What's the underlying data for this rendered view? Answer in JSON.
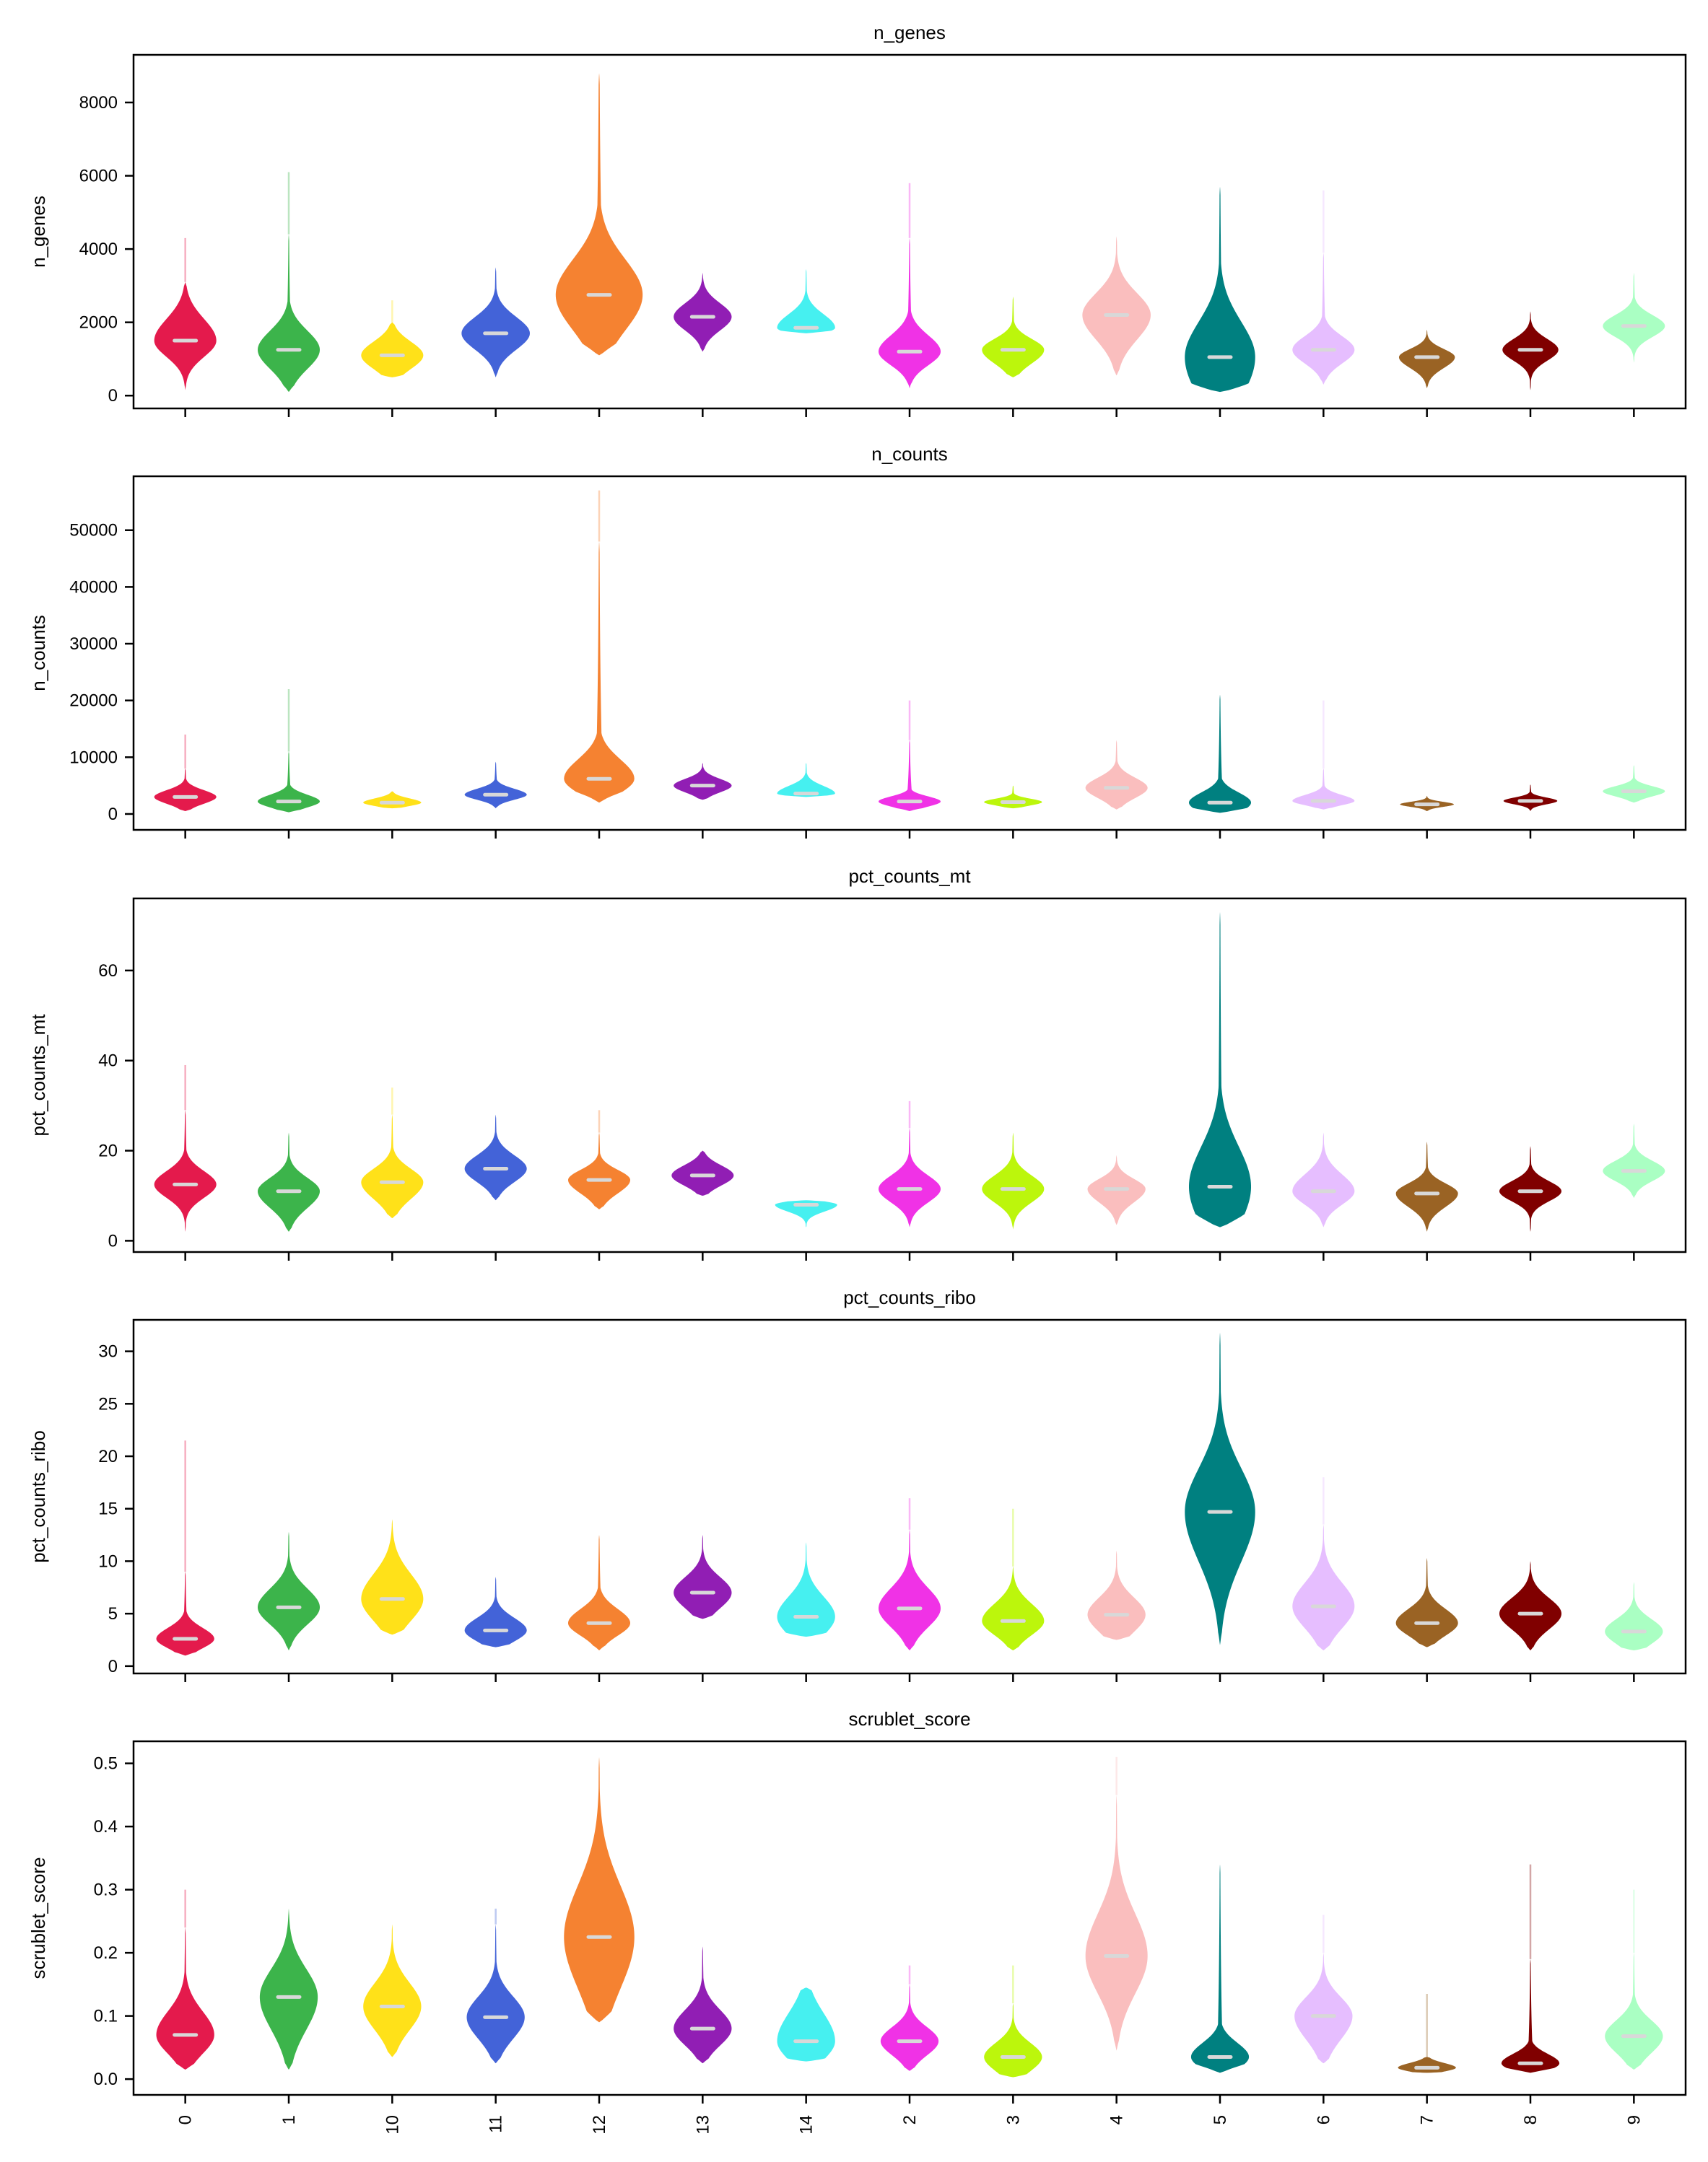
{
  "chart_data": [
    {
      "type": "violin",
      "title": "n_genes",
      "ylabel": "n_genes",
      "ylim": [
        -350,
        9300
      ],
      "yticks": [
        0,
        2000,
        4000,
        6000,
        8000
      ],
      "categories": [
        "0",
        "1",
        "10",
        "11",
        "12",
        "13",
        "14",
        "2",
        "3",
        "4",
        "5",
        "6",
        "7",
        "8",
        "9"
      ],
      "colors": [
        "#e41a4c",
        "#3cb44b",
        "#ffe119",
        "#4363d8",
        "#f58231",
        "#911eb4",
        "#46f0f0",
        "#f032e6",
        "#bcf60c",
        "#fabebe",
        "#008080",
        "#e6beff",
        "#9a6324",
        "#800000",
        "#aaffc3"
      ],
      "series": [
        {
          "min": 150,
          "q1": 1200,
          "median": 1500,
          "q3": 1900,
          "max": 3100,
          "halfwidth": 0.3,
          "outlier_max": 4300
        },
        {
          "min": 100,
          "q1": 900,
          "median": 1250,
          "q3": 1600,
          "max": 4400,
          "halfwidth": 0.3,
          "outlier_max": 6100
        },
        {
          "min": 500,
          "q1": 850,
          "median": 1100,
          "q3": 1350,
          "max": 2000,
          "halfwidth": 0.3,
          "outlier_max": 2600
        },
        {
          "min": 500,
          "q1": 1400,
          "median": 1700,
          "q3": 2000,
          "max": 3500,
          "halfwidth": 0.33
        },
        {
          "min": 1100,
          "q1": 2100,
          "median": 2750,
          "q3": 3400,
          "max": 8800,
          "halfwidth": 0.42
        },
        {
          "min": 1200,
          "q1": 1900,
          "median": 2150,
          "q3": 2400,
          "max": 3350,
          "halfwidth": 0.28
        },
        {
          "min": 1700,
          "q1": 1750,
          "median": 1850,
          "q3": 2100,
          "max": 3450,
          "halfwidth": 0.28
        },
        {
          "min": 200,
          "q1": 950,
          "median": 1200,
          "q3": 1500,
          "max": 4300,
          "halfwidth": 0.3,
          "outlier_max": 5800
        },
        {
          "min": 500,
          "q1": 1000,
          "median": 1250,
          "q3": 1450,
          "max": 2700,
          "halfwidth": 0.3
        },
        {
          "min": 550,
          "q1": 1750,
          "median": 2200,
          "q3": 2600,
          "max": 4350,
          "halfwidth": 0.33
        },
        {
          "min": 100,
          "q1": 300,
          "median": 1050,
          "q3": 1700,
          "max": 5700,
          "halfwidth": 0.34
        },
        {
          "min": 300,
          "q1": 1000,
          "median": 1250,
          "q3": 1500,
          "max": 3900,
          "halfwidth": 0.3,
          "outlier_max": 5600
        },
        {
          "min": 200,
          "q1": 850,
          "median": 1050,
          "q3": 1200,
          "max": 1800,
          "halfwidth": 0.27
        },
        {
          "min": 150,
          "q1": 1050,
          "median": 1250,
          "q3": 1450,
          "max": 2300,
          "halfwidth": 0.27
        },
        {
          "min": 900,
          "q1": 1700,
          "median": 1900,
          "q3": 2100,
          "max": 3350,
          "halfwidth": 0.3
        }
      ]
    },
    {
      "type": "violin",
      "title": "n_counts",
      "ylabel": "n_counts",
      "ylim": [
        -2800,
        59500
      ],
      "yticks": [
        0,
        10000,
        20000,
        30000,
        40000,
        50000
      ],
      "categories": [
        "0",
        "1",
        "10",
        "11",
        "12",
        "13",
        "14",
        "2",
        "3",
        "4",
        "5",
        "6",
        "7",
        "8",
        "9"
      ],
      "colors": [
        "#e41a4c",
        "#3cb44b",
        "#ffe119",
        "#4363d8",
        "#f58231",
        "#911eb4",
        "#46f0f0",
        "#f032e6",
        "#bcf60c",
        "#fabebe",
        "#008080",
        "#e6beff",
        "#9a6324",
        "#800000",
        "#aaffc3"
      ],
      "series": [
        {
          "min": 500,
          "q1": 2200,
          "median": 3000,
          "q3": 3800,
          "max": 8000,
          "halfwidth": 0.3,
          "outlier_max": 14000
        },
        {
          "min": 300,
          "q1": 1500,
          "median": 2200,
          "q3": 3000,
          "max": 11000,
          "halfwidth": 0.3,
          "outlier_max": 22000
        },
        {
          "min": 1000,
          "q1": 1600,
          "median": 2000,
          "q3": 2500,
          "max": 4000,
          "halfwidth": 0.28
        },
        {
          "min": 1000,
          "q1": 2800,
          "median": 3400,
          "q3": 4100,
          "max": 9200,
          "halfwidth": 0.3
        },
        {
          "min": 2000,
          "q1": 4500,
          "median": 6200,
          "q3": 8500,
          "max": 48000,
          "halfwidth": 0.34,
          "outlier_max": 57000
        },
        {
          "min": 2500,
          "q1": 4200,
          "median": 5000,
          "q3": 5800,
          "max": 9000,
          "halfwidth": 0.28
        },
        {
          "min": 3000,
          "q1": 3300,
          "median": 3600,
          "q3": 4500,
          "max": 9000,
          "halfwidth": 0.28
        },
        {
          "min": 500,
          "q1": 1600,
          "median": 2200,
          "q3": 2800,
          "max": 13000,
          "halfwidth": 0.3,
          "outlier_max": 20000
        },
        {
          "min": 1000,
          "q1": 1700,
          "median": 2100,
          "q3": 2500,
          "max": 5000,
          "halfwidth": 0.28
        },
        {
          "min": 800,
          "q1": 3400,
          "median": 4600,
          "q3": 5800,
          "max": 13000,
          "halfwidth": 0.3
        },
        {
          "min": 200,
          "q1": 800,
          "median": 2000,
          "q3": 3200,
          "max": 21000,
          "halfwidth": 0.3
        },
        {
          "min": 800,
          "q1": 1800,
          "median": 2300,
          "q3": 3000,
          "max": 8000,
          "halfwidth": 0.3,
          "outlier_max": 20000
        },
        {
          "min": 500,
          "q1": 1400,
          "median": 1700,
          "q3": 2000,
          "max": 3200,
          "halfwidth": 0.26
        },
        {
          "min": 500,
          "q1": 1900,
          "median": 2300,
          "q3": 2700,
          "max": 5200,
          "halfwidth": 0.26
        },
        {
          "min": 2000,
          "q1": 3400,
          "median": 4000,
          "q3": 4600,
          "max": 8600,
          "halfwidth": 0.3
        }
      ]
    },
    {
      "type": "violin",
      "title": "pct_counts_mt",
      "ylabel": "pct_counts_mt",
      "ylim": [
        -2.5,
        76
      ],
      "yticks": [
        0,
        20,
        40,
        60
      ],
      "categories": [
        "0",
        "1",
        "10",
        "11",
        "12",
        "13",
        "14",
        "2",
        "3",
        "4",
        "5",
        "6",
        "7",
        "8",
        "9"
      ],
      "colors": [
        "#e41a4c",
        "#3cb44b",
        "#ffe119",
        "#4363d8",
        "#f58231",
        "#911eb4",
        "#46f0f0",
        "#f032e6",
        "#bcf60c",
        "#fabebe",
        "#008080",
        "#e6beff",
        "#9a6324",
        "#800000",
        "#aaffc3"
      ],
      "series": [
        {
          "min": 2,
          "q1": 10.5,
          "median": 12.5,
          "q3": 14.5,
          "max": 29,
          "halfwidth": 0.3,
          "outlier_max": 39
        },
        {
          "min": 2,
          "q1": 8.5,
          "median": 11,
          "q3": 13,
          "max": 24,
          "halfwidth": 0.3
        },
        {
          "min": 5,
          "q1": 10.5,
          "median": 13,
          "q3": 15,
          "max": 28,
          "halfwidth": 0.3,
          "outlier_max": 34
        },
        {
          "min": 9,
          "q1": 14,
          "median": 16,
          "q3": 18,
          "max": 28,
          "halfwidth": 0.3
        },
        {
          "min": 7,
          "q1": 11.5,
          "median": 13.5,
          "q3": 15,
          "max": 24,
          "halfwidth": 0.3,
          "outlier_max": 29
        },
        {
          "min": 10,
          "q1": 13,
          "median": 14.5,
          "q3": 16,
          "max": 20,
          "halfwidth": 0.3
        },
        {
          "min": 3,
          "q1": 7,
          "median": 8,
          "q3": 8.5,
          "max": 9,
          "halfwidth": 0.3
        },
        {
          "min": 3,
          "q1": 9.5,
          "median": 11.5,
          "q3": 13.5,
          "max": 25,
          "halfwidth": 0.3,
          "outlier_max": 31
        },
        {
          "min": 2.5,
          "q1": 9.5,
          "median": 11.5,
          "q3": 13.5,
          "max": 24,
          "halfwidth": 0.3
        },
        {
          "min": 3.5,
          "q1": 9.5,
          "median": 11.5,
          "q3": 13,
          "max": 19,
          "halfwidth": 0.28
        },
        {
          "min": 3,
          "q1": 6,
          "median": 12,
          "q3": 18,
          "max": 73,
          "halfwidth": 0.3
        },
        {
          "min": 3,
          "q1": 9,
          "median": 11,
          "q3": 13.5,
          "max": 24,
          "halfwidth": 0.3
        },
        {
          "min": 2,
          "q1": 8.5,
          "median": 10.5,
          "q3": 12,
          "max": 22,
          "halfwidth": 0.3
        },
        {
          "min": 2,
          "q1": 9.5,
          "median": 11,
          "q3": 12.5,
          "max": 21,
          "halfwidth": 0.3
        },
        {
          "min": 9.5,
          "q1": 14,
          "median": 15.5,
          "q3": 17,
          "max": 26,
          "halfwidth": 0.3
        }
      ]
    },
    {
      "type": "violin",
      "title": "pct_counts_ribo",
      "ylabel": "pct_counts_ribo",
      "ylim": [
        -0.7,
        33
      ],
      "yticks": [
        0,
        5,
        10,
        15,
        20,
        25,
        30
      ],
      "categories": [
        "0",
        "1",
        "10",
        "11",
        "12",
        "13",
        "14",
        "2",
        "3",
        "4",
        "5",
        "6",
        "7",
        "8",
        "9"
      ],
      "colors": [
        "#e41a4c",
        "#3cb44b",
        "#ffe119",
        "#4363d8",
        "#f58231",
        "#911eb4",
        "#46f0f0",
        "#f032e6",
        "#bcf60c",
        "#fabebe",
        "#008080",
        "#e6beff",
        "#9a6324",
        "#800000",
        "#aaffc3"
      ],
      "series": [
        {
          "min": 1,
          "q1": 2,
          "median": 2.6,
          "q3": 3.3,
          "max": 9,
          "halfwidth": 0.28,
          "outlier_max": 21.5
        },
        {
          "min": 1.5,
          "q1": 4.5,
          "median": 5.6,
          "q3": 6.8,
          "max": 12.8,
          "halfwidth": 0.3
        },
        {
          "min": 3,
          "q1": 5,
          "median": 6.4,
          "q3": 8,
          "max": 14,
          "halfwidth": 0.3
        },
        {
          "min": 1.8,
          "q1": 2.7,
          "median": 3.4,
          "q3": 4.2,
          "max": 8.5,
          "halfwidth": 0.3
        },
        {
          "min": 1.5,
          "q1": 3.3,
          "median": 4.1,
          "q3": 5,
          "max": 12.5,
          "halfwidth": 0.3
        },
        {
          "min": 4.5,
          "q1": 6,
          "median": 7,
          "q3": 8,
          "max": 12.5,
          "halfwidth": 0.28
        },
        {
          "min": 2.8,
          "q1": 3.5,
          "median": 4.7,
          "q3": 6,
          "max": 11.8,
          "halfwidth": 0.28
        },
        {
          "min": 1.5,
          "q1": 4.3,
          "median": 5.5,
          "q3": 6.8,
          "max": 13,
          "halfwidth": 0.3,
          "outlier_max": 16
        },
        {
          "min": 1.5,
          "q1": 3.4,
          "median": 4.3,
          "q3": 5.4,
          "max": 9.5,
          "halfwidth": 0.3,
          "outlier_max": 15
        },
        {
          "min": 2.5,
          "q1": 3.8,
          "median": 4.9,
          "q3": 6,
          "max": 11,
          "halfwidth": 0.28
        },
        {
          "min": 2,
          "q1": 11.5,
          "median": 14.7,
          "q3": 17.5,
          "max": 31.8,
          "halfwidth": 0.34
        },
        {
          "min": 1.5,
          "q1": 4.3,
          "median": 5.7,
          "q3": 7.2,
          "max": 13.5,
          "halfwidth": 0.3,
          "outlier_max": 18
        },
        {
          "min": 1.8,
          "q1": 3.3,
          "median": 4.1,
          "q3": 5,
          "max": 10.3,
          "halfwidth": 0.3
        },
        {
          "min": 1.5,
          "q1": 4,
          "median": 5,
          "q3": 6,
          "max": 10,
          "halfwidth": 0.3
        },
        {
          "min": 1.5,
          "q1": 2.5,
          "median": 3.3,
          "q3": 4.1,
          "max": 8,
          "halfwidth": 0.28
        }
      ]
    },
    {
      "type": "violin",
      "title": "scrublet_score",
      "ylabel": "scrublet_score",
      "ylim": [
        -0.025,
        0.535
      ],
      "yticks": [
        0.0,
        0.1,
        0.2,
        0.3,
        0.4,
        0.5
      ],
      "categories": [
        "0",
        "1",
        "10",
        "11",
        "12",
        "13",
        "14",
        "2",
        "3",
        "4",
        "5",
        "6",
        "7",
        "8",
        "9"
      ],
      "colors": [
        "#e41a4c",
        "#3cb44b",
        "#ffe119",
        "#4363d8",
        "#f58231",
        "#911eb4",
        "#46f0f0",
        "#f032e6",
        "#bcf60c",
        "#fabebe",
        "#008080",
        "#e6beff",
        "#9a6324",
        "#800000",
        "#aaffc3"
      ],
      "series": [
        {
          "min": 0.015,
          "q1": 0.05,
          "median": 0.07,
          "q3": 0.095,
          "max": 0.24,
          "halfwidth": 0.28,
          "outlier_max": 0.3
        },
        {
          "min": 0.015,
          "q1": 0.095,
          "median": 0.13,
          "q3": 0.16,
          "max": 0.27,
          "halfwidth": 0.28
        },
        {
          "min": 0.035,
          "q1": 0.09,
          "median": 0.115,
          "q3": 0.14,
          "max": 0.245,
          "halfwidth": 0.28
        },
        {
          "min": 0.025,
          "q1": 0.075,
          "median": 0.098,
          "q3": 0.12,
          "max": 0.245,
          "halfwidth": 0.28,
          "outlier_max": 0.27
        },
        {
          "min": 0.09,
          "q1": 0.17,
          "median": 0.225,
          "q3": 0.28,
          "max": 0.51,
          "halfwidth": 0.34
        },
        {
          "min": 0.025,
          "q1": 0.062,
          "median": 0.08,
          "q3": 0.1,
          "max": 0.21,
          "halfwidth": 0.28
        },
        {
          "min": 0.028,
          "q1": 0.04,
          "median": 0.06,
          "q3": 0.09,
          "max": 0.145,
          "halfwidth": 0.28
        },
        {
          "min": 0.013,
          "q1": 0.045,
          "median": 0.06,
          "q3": 0.075,
          "max": 0.15,
          "halfwidth": 0.28,
          "outlier_max": 0.18
        },
        {
          "min": 0.003,
          "q1": 0.02,
          "median": 0.035,
          "q3": 0.05,
          "max": 0.12,
          "halfwidth": 0.28,
          "outlier_max": 0.18
        },
        {
          "min": 0.045,
          "q1": 0.155,
          "median": 0.195,
          "q3": 0.24,
          "max": 0.45,
          "halfwidth": 0.3,
          "outlier_max": 0.51
        },
        {
          "min": 0.01,
          "q1": 0.022,
          "median": 0.035,
          "q3": 0.05,
          "max": 0.34,
          "halfwidth": 0.28
        },
        {
          "min": 0.025,
          "q1": 0.075,
          "median": 0.1,
          "q3": 0.12,
          "max": 0.2,
          "halfwidth": 0.28,
          "outlier_max": 0.26
        },
        {
          "min": 0.01,
          "q1": 0.014,
          "median": 0.018,
          "q3": 0.023,
          "max": 0.035,
          "halfwidth": 0.28,
          "outlier_max": 0.135
        },
        {
          "min": 0.01,
          "q1": 0.017,
          "median": 0.025,
          "q3": 0.035,
          "max": 0.19,
          "halfwidth": 0.28,
          "outlier_max": 0.34
        },
        {
          "min": 0.015,
          "q1": 0.05,
          "median": 0.068,
          "q3": 0.085,
          "max": 0.2,
          "halfwidth": 0.28,
          "outlier_max": 0.3
        }
      ]
    }
  ]
}
